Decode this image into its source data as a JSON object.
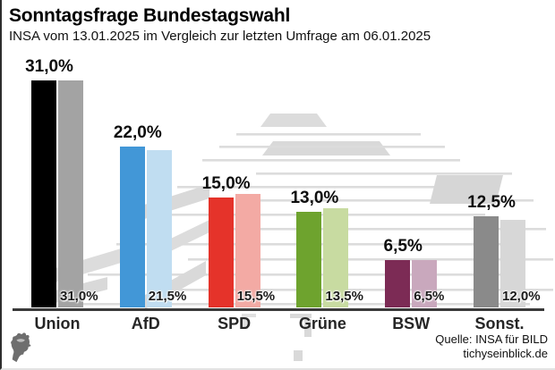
{
  "header": {
    "title": "Sonntagsfrage Bundestagswahl",
    "subtitle": "INSA vom 13.01.2025 im Vergleich zur letzten Umfrage am 06.01.2025"
  },
  "footer": {
    "source_line1": "Quelle: INSA für BILD",
    "source_line2": "tichyseinblick.de",
    "logo_name": "tichys-einblick-minerva-head-logo"
  },
  "chart_data": {
    "type": "bar",
    "title": "Sonntagsfrage Bundestagswahl",
    "subtitle": "INSA vom 13.01.2025 im Vergleich zur letzten Umfrage am 06.01.2025",
    "categories": [
      "Union",
      "AfD",
      "SPD",
      "Grüne",
      "BSW",
      "Sonst."
    ],
    "series": [
      {
        "name": "INSA 13.01.2025",
        "values": [
          31.0,
          22.0,
          15.0,
          13.0,
          6.5,
          12.5
        ]
      },
      {
        "name": "letzte Umfrage 06.01.2025",
        "values": [
          31.0,
          21.5,
          15.5,
          13.5,
          6.5,
          12.0
        ]
      }
    ],
    "value_suffix": "%",
    "decimal_separator": ",",
    "ylim": [
      0,
      33
    ],
    "grid": false,
    "legend": "none",
    "bar_colors_current": [
      "#000000",
      "#4297d7",
      "#e5332a",
      "#6ea32e",
      "#7c2b55",
      "#8a8a8a"
    ],
    "bar_colors_previous": [
      "#a3a3a3",
      "#c0ddf1",
      "#f3aaa4",
      "#c8dba1",
      "#c9a8bd",
      "#d7d7d7"
    ],
    "axis_color": "#3a3a3a",
    "watermark": "reichstag-dome-sketch"
  }
}
